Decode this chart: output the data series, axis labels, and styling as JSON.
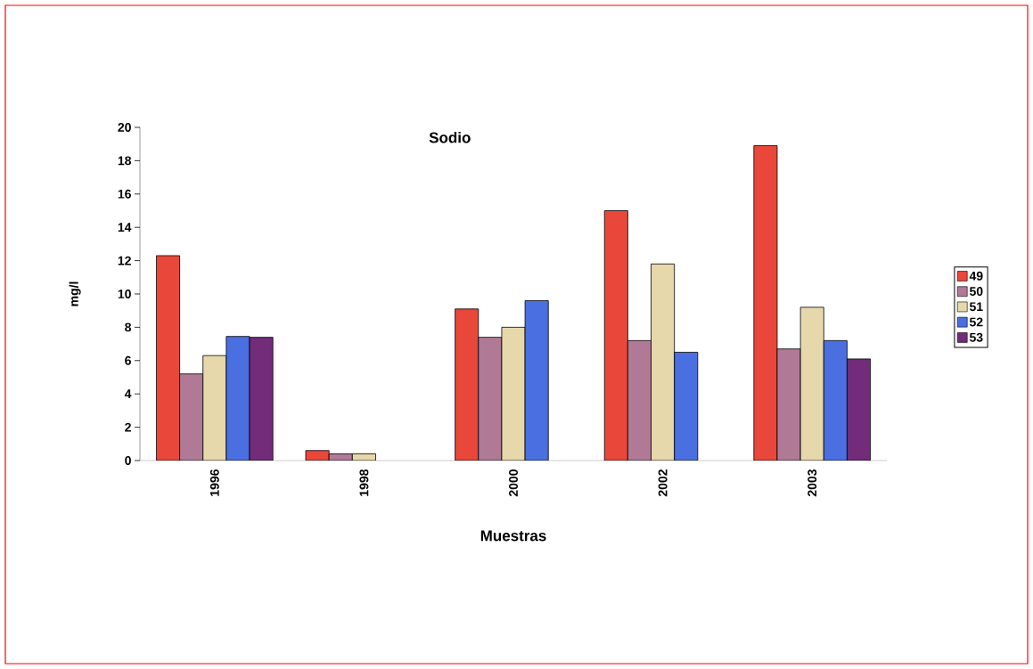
{
  "chart_data": {
    "type": "bar",
    "title": "Sodio",
    "xlabel": "Muestras",
    "ylabel": "mg/l",
    "categories": [
      "1996",
      "1998",
      "2000",
      "2002",
      "2003"
    ],
    "series": [
      {
        "name": "49",
        "color": "#e8473a",
        "values": [
          12.3,
          0.6,
          9.1,
          15.0,
          18.9
        ]
      },
      {
        "name": "50",
        "color": "#b07a96",
        "values": [
          5.2,
          0.4,
          7.4,
          7.2,
          6.7
        ]
      },
      {
        "name": "51",
        "color": "#e6d8ab",
        "values": [
          6.3,
          0.4,
          8.0,
          11.8,
          9.2
        ]
      },
      {
        "name": "52",
        "color": "#4a6fe0",
        "values": [
          7.45,
          null,
          9.6,
          6.5,
          7.2
        ]
      },
      {
        "name": "53",
        "color": "#722c79",
        "values": [
          7.4,
          null,
          null,
          null,
          6.1
        ]
      }
    ],
    "ylim": [
      0,
      20
    ],
    "yticks": [
      0,
      2,
      4,
      6,
      8,
      10,
      12,
      14,
      16,
      18,
      20
    ],
    "legend": "right"
  }
}
